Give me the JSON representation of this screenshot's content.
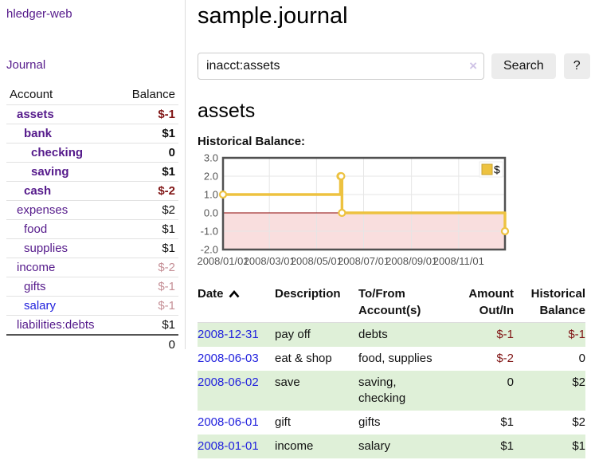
{
  "app": {
    "title": "hledger-web"
  },
  "sidebar": {
    "nav": {
      "journal_label": "Journal"
    },
    "table": {
      "headers": {
        "account": "Account",
        "balance": "Balance"
      },
      "accounts": [
        {
          "name": "assets",
          "balance": "$-1"
        },
        {
          "name": "bank",
          "balance": "$1"
        },
        {
          "name": "checking",
          "balance": "0"
        },
        {
          "name": "saving",
          "balance": "$1"
        },
        {
          "name": "cash",
          "balance": "$-2"
        },
        {
          "name": "expenses",
          "balance": "$2"
        },
        {
          "name": "food",
          "balance": "$1"
        },
        {
          "name": "supplies",
          "balance": "$1"
        },
        {
          "name": "income",
          "balance": "$-2"
        },
        {
          "name": "gifts",
          "balance": "$-1"
        },
        {
          "name": "salary",
          "balance": "$-1"
        },
        {
          "name": "liabilities:debts",
          "balance": "$1"
        }
      ],
      "total": "0"
    }
  },
  "main": {
    "title": "sample.journal",
    "search": {
      "query": "inacct:assets",
      "clear_icon": "×",
      "button_label": "Search",
      "help_label": "?"
    },
    "account_heading": "assets",
    "chart_label": "Historical Balance:",
    "register": {
      "headers": {
        "date": "Date",
        "sort_icon": "chevron-up",
        "description": "Description",
        "accounts": "To/From Account(s)",
        "amount": "Amount Out/In",
        "balance": "Historical Balance"
      },
      "rows": [
        {
          "date": "2008-12-31",
          "description": "pay off",
          "accounts": "debts",
          "amount": "$-1",
          "balance": "$-1"
        },
        {
          "date": "2008-06-03",
          "description": "eat & shop",
          "accounts": "food, supplies",
          "amount": "$-2",
          "balance": "0"
        },
        {
          "date": "2008-06-02",
          "description": "save",
          "accounts": "saving, checking",
          "amount": "0",
          "balance": "$2"
        },
        {
          "date": "2008-06-01",
          "description": "gift",
          "accounts": "gifts",
          "amount": "$1",
          "balance": "$2"
        },
        {
          "date": "2008-01-01",
          "description": "income",
          "accounts": "salary",
          "amount": "$1",
          "balance": "$1"
        }
      ]
    }
  },
  "chart_data": {
    "type": "line",
    "step": true,
    "title": "Historical Balance:",
    "series": [
      {
        "name": "$",
        "color": "#edc240",
        "points": [
          [
            "2008-01-01",
            1
          ],
          [
            "2008-06-01",
            2
          ],
          [
            "2008-06-02",
            2
          ],
          [
            "2008-06-03",
            0
          ],
          [
            "2008-12-31",
            -1
          ]
        ]
      }
    ],
    "x_range": [
      "2008-01-01",
      "2008-12-31"
    ],
    "ylim": [
      -2,
      3
    ],
    "y_ticks": [
      3.0,
      2.0,
      1.0,
      0.0,
      -1.0,
      -2.0
    ],
    "x_tick_labels": [
      "2008/01/01",
      "2008/03/01",
      "2008/05/01",
      "2008/07/01",
      "2008/09/01",
      "2008/11/01"
    ],
    "grid": true,
    "legend_position": "top-right",
    "negative_region": {
      "from": 0,
      "to": -2,
      "fill": "#f9dede",
      "line_color": "#8b0000"
    }
  },
  "colors": {
    "link_purple": "#551a8b",
    "link_blue": "#2222dd",
    "negative": "#801515",
    "negative_dim": "#c58f96",
    "row_green": "#dff0d8",
    "accent_gold": "#edc240",
    "grid_border": "#515151"
  }
}
